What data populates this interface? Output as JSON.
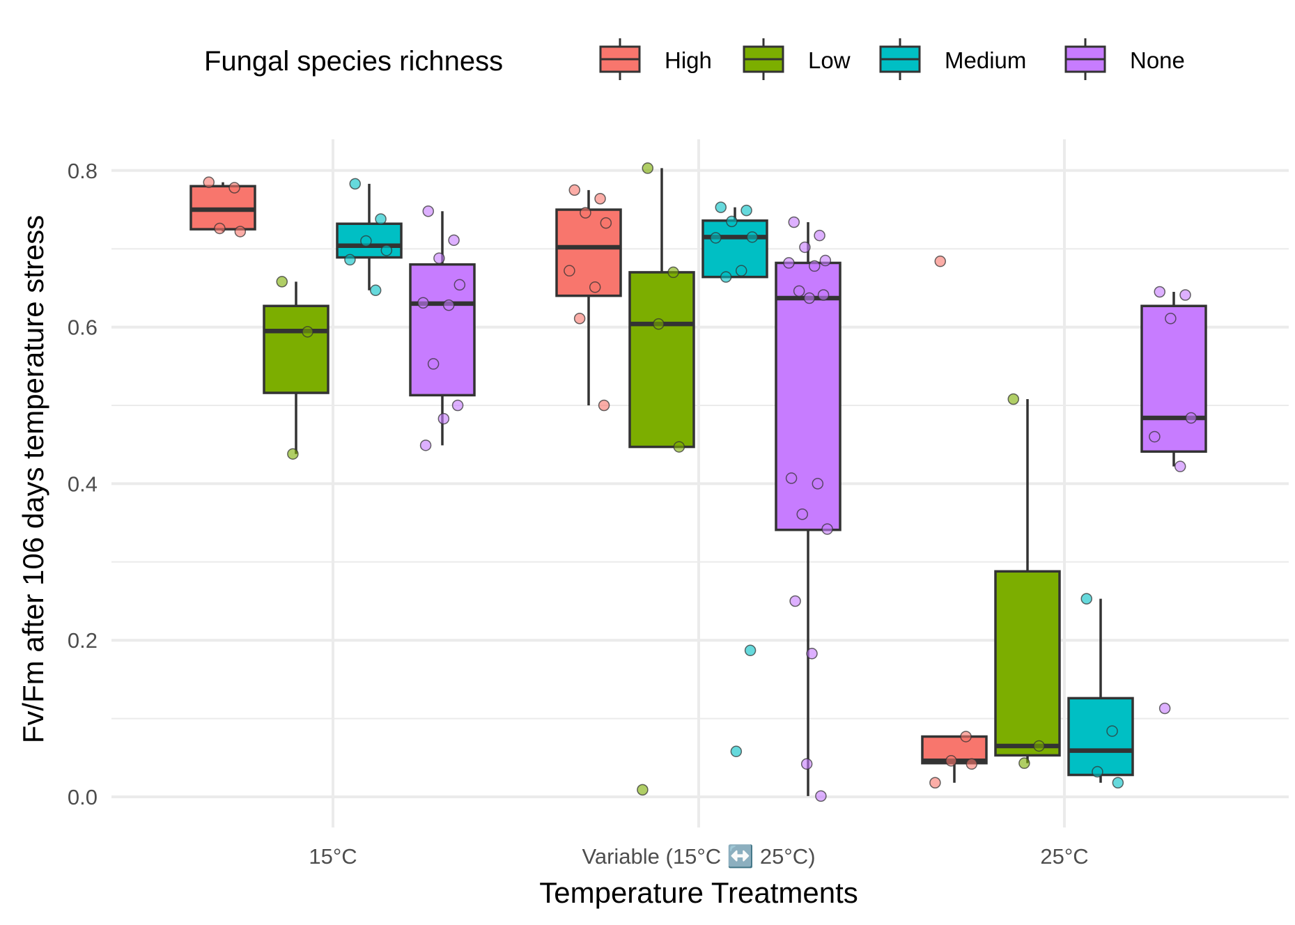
{
  "chart_data": {
    "type": "box",
    "xlabel": "Temperature Treatments",
    "ylabel": "Fv/Fm after 106 days temperature stress",
    "categories": [
      "15°C",
      "Variable (15°C ↔️ 25°C)",
      "25°C"
    ],
    "ylim": [
      -0.06,
      0.87
    ],
    "yticks": [
      0.0,
      0.2,
      0.4,
      0.6,
      0.8
    ],
    "ytick_labels": [
      "0.0",
      "0.2",
      "0.4",
      "0.6",
      "0.8"
    ],
    "grid": true,
    "legend": {
      "title": "Fungal species richness",
      "position": "top"
    },
    "series": [
      {
        "name": "High",
        "color": "#F8766D",
        "boxes": [
          {
            "lower_whisker": 0.722,
            "q1": 0.725,
            "median": 0.75,
            "q3": 0.78,
            "upper_whisker": 0.785,
            "points": [
              0.785,
              0.778,
              0.726,
              0.722
            ]
          },
          {
            "lower_whisker": 0.5,
            "q1": 0.64,
            "median": 0.702,
            "q3": 0.75,
            "upper_whisker": 0.775,
            "points": [
              0.775,
              0.764,
              0.746,
              0.733,
              0.672,
              0.651,
              0.611,
              0.5
            ]
          },
          {
            "lower_whisker": 0.018,
            "q1": 0.043,
            "median": 0.046,
            "q3": 0.077,
            "upper_whisker": 0.077,
            "points": [
              0.684,
              0.077,
              0.046,
              0.042,
              0.018
            ]
          }
        ]
      },
      {
        "name": "Low",
        "color": "#7CAE00",
        "boxes": [
          {
            "lower_whisker": 0.438,
            "q1": 0.516,
            "median": 0.595,
            "q3": 0.627,
            "upper_whisker": 0.658,
            "points": [
              0.658,
              0.594,
              0.438
            ]
          },
          {
            "lower_whisker": 0.447,
            "q1": 0.447,
            "median": 0.604,
            "q3": 0.67,
            "upper_whisker": 0.803,
            "points": [
              0.803,
              0.67,
              0.604,
              0.447,
              0.009
            ]
          },
          {
            "lower_whisker": 0.043,
            "q1": 0.053,
            "median": 0.065,
            "q3": 0.288,
            "upper_whisker": 0.508,
            "points": [
              0.508,
              0.065,
              0.043
            ]
          }
        ]
      },
      {
        "name": "Medium",
        "color": "#00BFC4",
        "boxes": [
          {
            "lower_whisker": 0.647,
            "q1": 0.689,
            "median": 0.704,
            "q3": 0.732,
            "upper_whisker": 0.783,
            "points": [
              0.783,
              0.738,
              0.71,
              0.698,
              0.686,
              0.647
            ]
          },
          {
            "lower_whisker": 0.664,
            "q1": 0.664,
            "median": 0.715,
            "q3": 0.736,
            "upper_whisker": 0.753,
            "points": [
              0.753,
              0.749,
              0.735,
              0.715,
              0.714,
              0.672,
              0.664,
              0.187,
              0.058
            ]
          },
          {
            "lower_whisker": 0.018,
            "q1": 0.028,
            "median": 0.059,
            "q3": 0.126,
            "upper_whisker": 0.253,
            "points": [
              0.253,
              0.084,
              0.032,
              0.018
            ]
          }
        ]
      },
      {
        "name": "None",
        "color": "#C77CFF",
        "boxes": [
          {
            "lower_whisker": 0.449,
            "q1": 0.513,
            "median": 0.63,
            "q3": 0.68,
            "upper_whisker": 0.748,
            "points": [
              0.748,
              0.711,
              0.688,
              0.654,
              0.631,
              0.628,
              0.553,
              0.5,
              0.483,
              0.449
            ]
          },
          {
            "lower_whisker": 0.001,
            "q1": 0.341,
            "median": 0.637,
            "q3": 0.682,
            "upper_whisker": 0.734,
            "points": [
              0.734,
              0.717,
              0.702,
              0.685,
              0.682,
              0.678,
              0.646,
              0.641,
              0.637,
              0.407,
              0.4,
              0.361,
              0.342,
              0.25,
              0.183,
              0.042,
              0.001
            ]
          },
          {
            "lower_whisker": 0.422,
            "q1": 0.441,
            "median": 0.484,
            "q3": 0.627,
            "upper_whisker": 0.645,
            "points": [
              0.645,
              0.641,
              0.611,
              0.484,
              0.46,
              0.422,
              0.113
            ]
          }
        ]
      }
    ]
  }
}
